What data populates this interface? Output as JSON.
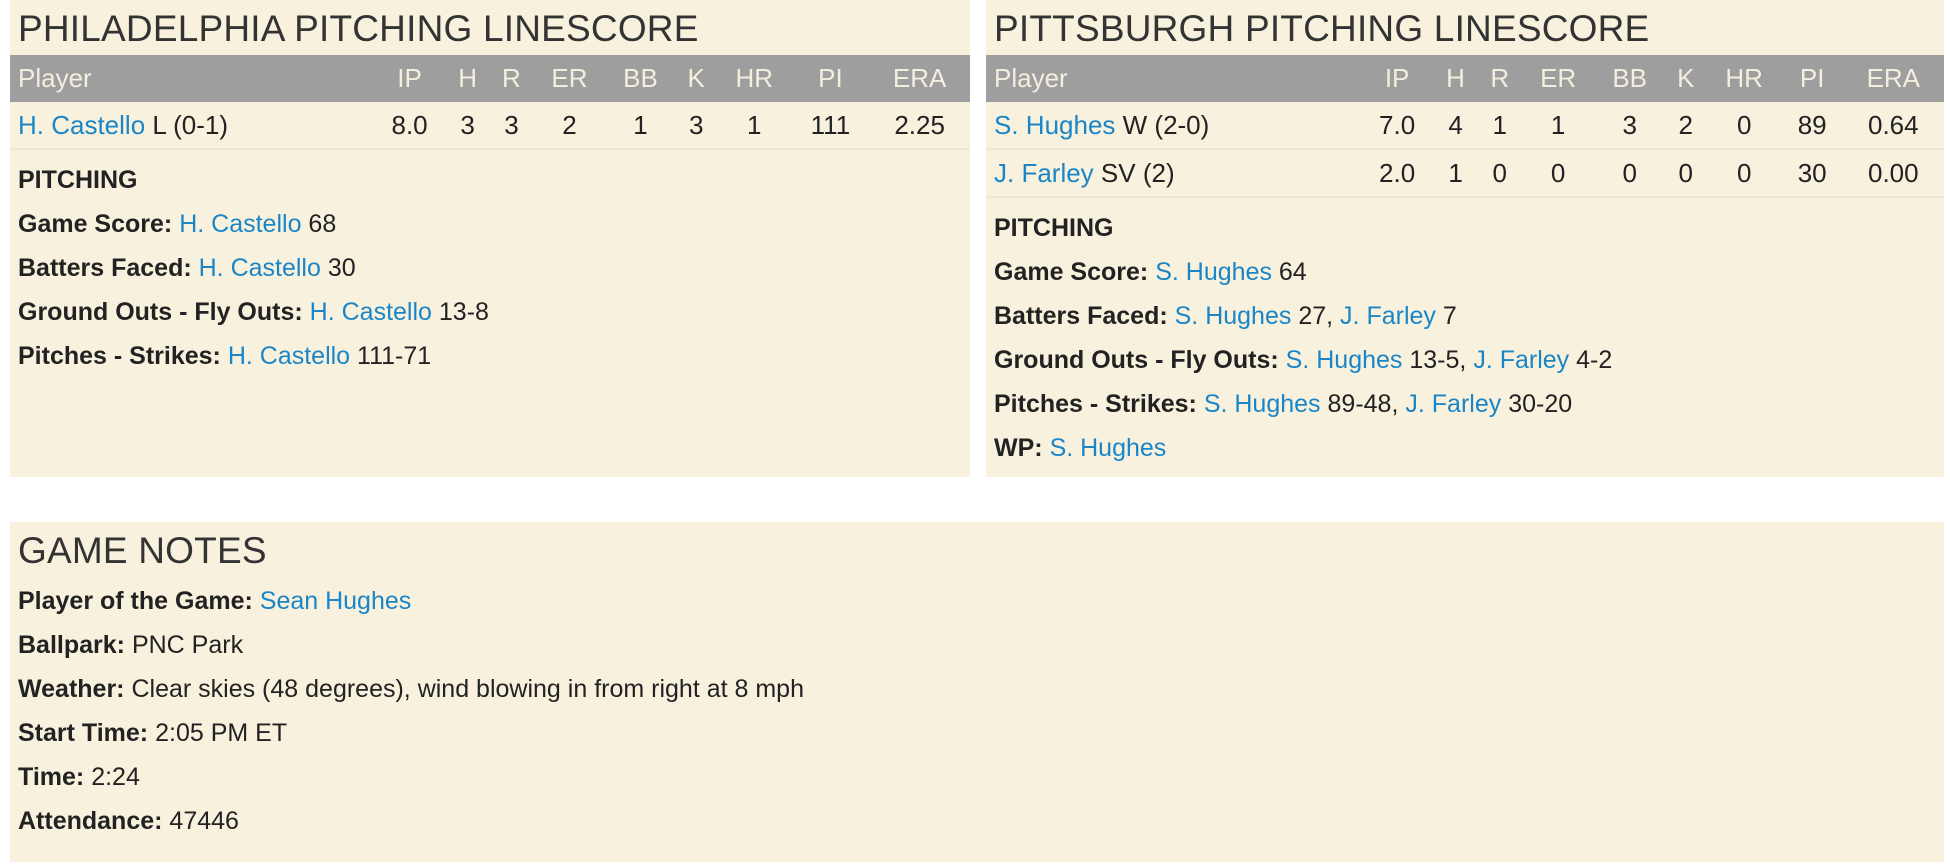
{
  "columns": [
    "Player",
    "IP",
    "H",
    "R",
    "ER",
    "BB",
    "K",
    "HR",
    "PI",
    "ERA"
  ],
  "philadelphia": {
    "title": "PHILADELPHIA PITCHING LINESCORE",
    "rows": [
      {
        "name": "H. Castello",
        "note": "L (0-1)",
        "stats": [
          "8.0",
          "3",
          "3",
          "2",
          "1",
          "3",
          "1",
          "111",
          "2.25"
        ]
      }
    ],
    "section": "PITCHING",
    "lines": [
      {
        "label": "Game Score:",
        "parts": [
          {
            "name": "H. Castello",
            "val": "68"
          }
        ]
      },
      {
        "label": "Batters Faced:",
        "parts": [
          {
            "name": "H. Castello",
            "val": "30"
          }
        ]
      },
      {
        "label": "Ground Outs - Fly Outs:",
        "parts": [
          {
            "name": "H. Castello",
            "val": "13-8"
          }
        ]
      },
      {
        "label": "Pitches - Strikes:",
        "parts": [
          {
            "name": "H. Castello",
            "val": "111-71"
          }
        ]
      }
    ]
  },
  "pittsburgh": {
    "title": "PITTSBURGH PITCHING LINESCORE",
    "rows": [
      {
        "name": "S. Hughes",
        "note": "W (2-0)",
        "stats": [
          "7.0",
          "4",
          "1",
          "1",
          "3",
          "2",
          "0",
          "89",
          "0.64"
        ]
      },
      {
        "name": "J. Farley",
        "note": "SV (2)",
        "stats": [
          "2.0",
          "1",
          "0",
          "0",
          "0",
          "0",
          "0",
          "30",
          "0.00"
        ]
      }
    ],
    "section": "PITCHING",
    "lines": [
      {
        "label": "Game Score:",
        "parts": [
          {
            "name": "S. Hughes",
            "val": "64"
          }
        ]
      },
      {
        "label": "Batters Faced:",
        "parts": [
          {
            "name": "S. Hughes",
            "val": "27"
          },
          {
            "name": "J. Farley",
            "val": "7"
          }
        ]
      },
      {
        "label": "Ground Outs - Fly Outs:",
        "parts": [
          {
            "name": "S. Hughes",
            "val": "13-5"
          },
          {
            "name": "J. Farley",
            "val": "4-2"
          }
        ]
      },
      {
        "label": "Pitches - Strikes:",
        "parts": [
          {
            "name": "S. Hughes",
            "val": "89-48"
          },
          {
            "name": "J. Farley",
            "val": "30-20"
          }
        ]
      },
      {
        "label": "WP:",
        "parts": [
          {
            "name": "S. Hughes",
            "val": ""
          }
        ]
      }
    ]
  },
  "notes": {
    "title": "GAME NOTES",
    "player_of_game_label": "Player of the Game:",
    "player_of_game": "Sean Hughes",
    "items": [
      {
        "label": "Ballpark:",
        "val": "PNC Park"
      },
      {
        "label": "Weather:",
        "val": "Clear skies (48 degrees), wind blowing in from right at 8 mph"
      },
      {
        "label": "Start Time:",
        "val": "2:05 PM ET"
      },
      {
        "label": "Time:",
        "val": "2:24"
      },
      {
        "label": "Attendance:",
        "val": "47446"
      }
    ]
  },
  "colors": {
    "panel": "#f7f1de",
    "header": "#9e9e9e",
    "link": "#1a86c8"
  }
}
